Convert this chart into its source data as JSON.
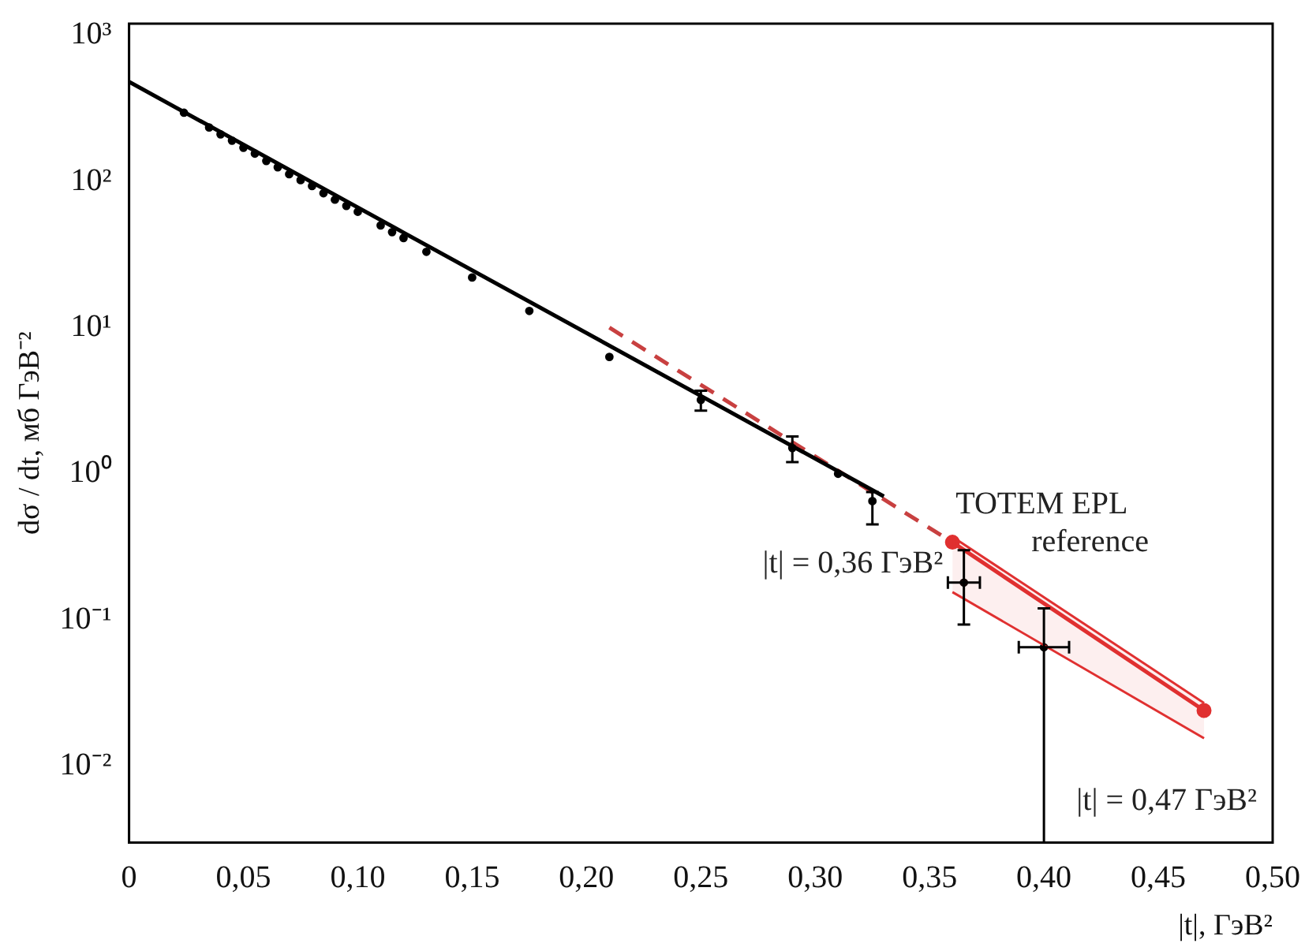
{
  "chart_data": {
    "type": "scatter",
    "xlabel": "|t|, ГэВ²",
    "ylabel": "dσ / dt, мб ГэВ⁻²",
    "xlim": [
      0,
      0.5
    ],
    "ylim": [
      0.003,
      1200
    ],
    "log": "y",
    "grid": false,
    "legend": false,
    "xticks": [
      0,
      {
        "value": 0.05,
        "label": "0,05"
      },
      {
        "value": 0.1,
        "label": "0,10"
      },
      {
        "value": 0.15,
        "label": "0,15"
      },
      {
        "value": 0.2,
        "label": "0,20"
      },
      {
        "value": 0.25,
        "label": "0,25"
      },
      {
        "value": 0.3,
        "label": "0,30"
      },
      {
        "value": 0.35,
        "label": "0,35"
      },
      {
        "value": 0.4,
        "label": "0,40"
      },
      {
        "value": 0.45,
        "label": "0,45"
      },
      {
        "value": 0.5,
        "label": "0,50"
      }
    ],
    "yticks": [
      {
        "value": 0.01,
        "label": "10⁻²"
      },
      {
        "value": 0.1,
        "label": "10⁻¹"
      },
      {
        "value": 1,
        "label": "10⁰"
      },
      {
        "value": 10,
        "label": "10¹"
      },
      {
        "value": 100,
        "label": "10²"
      },
      {
        "value": 1000,
        "label": "10³"
      }
    ],
    "series": [
      {
        "color": "#000000",
        "marker": "circle",
        "x": [
          0.024,
          0.035,
          0.04,
          0.045,
          0.05,
          0.055,
          0.06,
          0.065,
          0.07,
          0.075,
          0.08,
          0.085,
          0.09,
          0.095,
          0.1,
          0.11,
          0.115,
          0.12,
          0.13,
          0.15,
          0.175,
          0.21,
          0.25,
          0.29,
          0.31,
          0.325,
          0.365,
          0.4
        ],
        "values": [
          295,
          234,
          210,
          190,
          170,
          155,
          138,
          125,
          112,
          102,
          93,
          83,
          75,
          68,
          62,
          50,
          45,
          41,
          33,
          22,
          13,
          6.3,
          3.2,
          1.5,
          1.0,
          0.65,
          0.18,
          0.065
        ],
        "errors": [
          null,
          null,
          null,
          null,
          null,
          null,
          null,
          null,
          null,
          null,
          null,
          null,
          null,
          null,
          null,
          null,
          null,
          null,
          null,
          null,
          null,
          null,
          [
            2.7,
            3.7
          ],
          [
            1.2,
            1.8
          ],
          null,
          [
            0.45,
            0.75
          ],
          [
            0.093,
            0.3
          ],
          [
            0.003,
            0.12
          ]
        ],
        "xerrors": [
          null,
          null,
          null,
          null,
          null,
          null,
          null,
          null,
          null,
          null,
          null,
          null,
          null,
          null,
          null,
          null,
          null,
          null,
          null,
          null,
          null,
          null,
          null,
          null,
          null,
          null,
          0.007,
          0.011
        ]
      },
      {
        "type": "line",
        "color": "#000000",
        "marker": "none",
        "line_style": "solid",
        "x": [
          0,
          0.33
        ],
        "values": [
          480,
          0.7
        ]
      },
      {
        "type": "line",
        "color": "#c84040",
        "marker": "none",
        "line_style": "dashed",
        "x": [
          0.21,
          0.355
        ],
        "values": [
          10,
          0.38
        ]
      },
      {
        "type": "line",
        "name": "TOTEM EPL reference",
        "color": "#e03030",
        "marker": "circle",
        "line_style": "solid",
        "x": [
          0.36,
          0.47
        ],
        "values": [
          0.34,
          0.024
        ],
        "lower": [
          0.155,
          0.0155
        ],
        "upper": [
          0.37,
          0.027
        ]
      }
    ],
    "annotations": [
      {
        "text": "|t| = 0,36 ГэВ²",
        "x": 0.36,
        "y": 0.36
      },
      "|t| = 0,47 ГэВ²"
    ]
  }
}
